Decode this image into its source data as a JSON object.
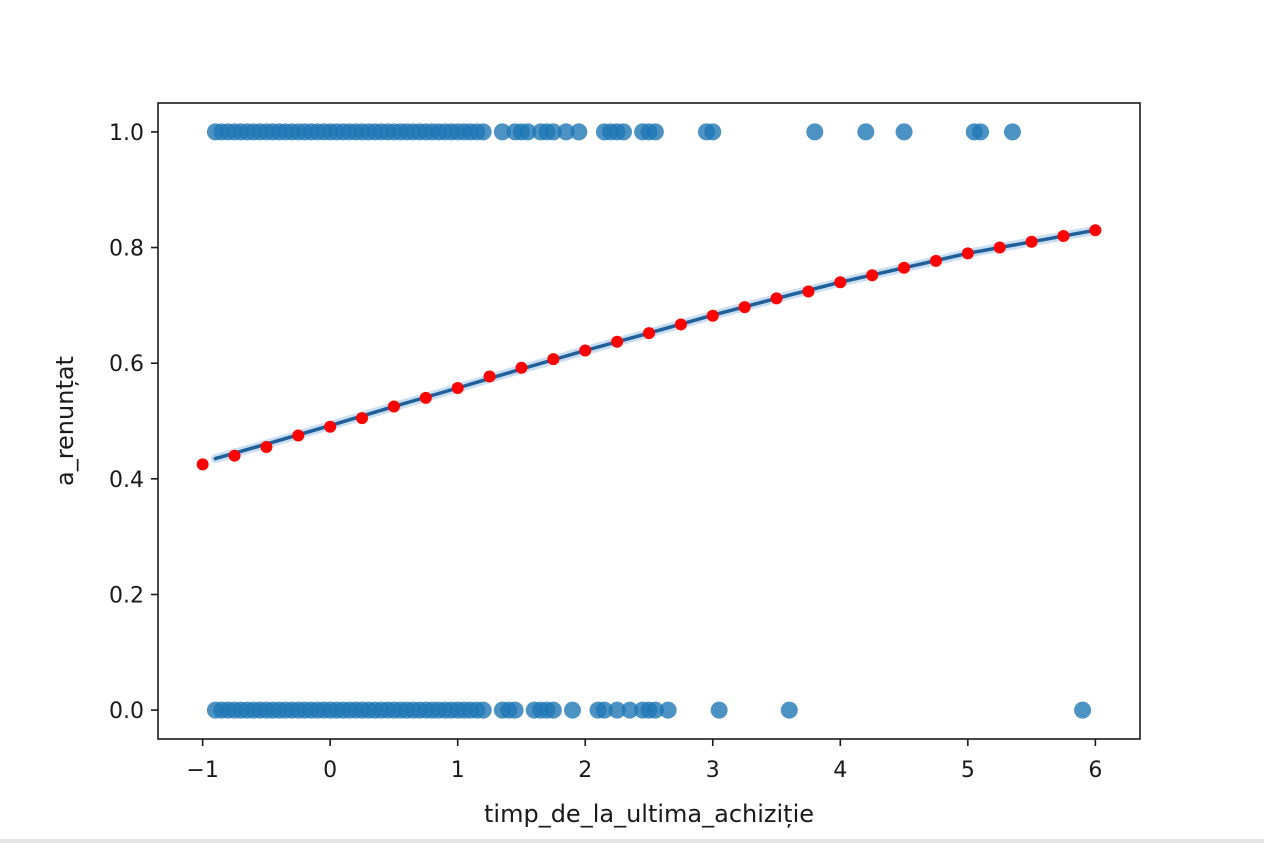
{
  "chart_data": {
    "type": "scatter",
    "title": "",
    "xlabel": "timp_de_la_ultima_achiziție",
    "ylabel": "a_renunțat",
    "xlim": [
      -1.35,
      6.35
    ],
    "ylim": [
      -0.05,
      1.05
    ],
    "xticks": [
      -1,
      0,
      1,
      2,
      3,
      4,
      5,
      6
    ],
    "xtick_labels": [
      "−1",
      "0",
      "1",
      "2",
      "3",
      "4",
      "5",
      "6"
    ],
    "yticks": [
      0.0,
      0.2,
      0.4,
      0.6,
      0.8,
      1.0
    ],
    "ytick_labels": [
      "0.0",
      "0.2",
      "0.4",
      "0.6",
      "0.8",
      "1.0"
    ],
    "grid": false,
    "colors": {
      "observed": "#1f77b4",
      "fit_line": "#1f5f9a",
      "predicted": "#ff0000"
    },
    "series": [
      {
        "kind": "scatter",
        "values_x": [
          -0.9,
          -0.85,
          -0.8,
          -0.75,
          -0.7,
          -0.65,
          -0.6,
          -0.55,
          -0.5,
          -0.45,
          -0.4,
          -0.35,
          -0.3,
          -0.25,
          -0.2,
          -0.15,
          -0.1,
          -0.05,
          0,
          0.05,
          0.1,
          0.15,
          0.2,
          0.25,
          0.3,
          0.35,
          0.4,
          0.45,
          0.5,
          0.55,
          0.6,
          0.65,
          0.7,
          0.75,
          0.8,
          0.85,
          0.9,
          0.95,
          1.0,
          1.05,
          1.1,
          1.15,
          1.2,
          1.35,
          1.45,
          1.5,
          1.55,
          1.65,
          1.7,
          1.75,
          1.85,
          1.95,
          2.15,
          2.2,
          2.25,
          2.3,
          2.45,
          2.5,
          2.55,
          2.95,
          3.0,
          3.8,
          4.2,
          4.5,
          5.05,
          5.1,
          5.35
        ],
        "value_y": 1.0
      },
      {
        "kind": "scatter",
        "values_x": [
          -0.9,
          -0.85,
          -0.8,
          -0.75,
          -0.7,
          -0.65,
          -0.6,
          -0.55,
          -0.5,
          -0.45,
          -0.4,
          -0.35,
          -0.3,
          -0.25,
          -0.2,
          -0.15,
          -0.1,
          -0.05,
          0,
          0.05,
          0.1,
          0.15,
          0.2,
          0.25,
          0.3,
          0.35,
          0.4,
          0.45,
          0.5,
          0.55,
          0.6,
          0.65,
          0.7,
          0.75,
          0.8,
          0.85,
          0.9,
          0.95,
          1.0,
          1.05,
          1.1,
          1.15,
          1.2,
          1.35,
          1.4,
          1.45,
          1.6,
          1.65,
          1.7,
          1.75,
          1.9,
          2.1,
          2.15,
          2.25,
          2.35,
          2.45,
          2.5,
          2.55,
          2.65,
          3.05,
          3.6,
          5.9
        ],
        "value_y": 0.0
      },
      {
        "kind": "line",
        "x": [
          -0.9,
          -0.5,
          0,
          0.5,
          1,
          1.5,
          2,
          2.5,
          3,
          3.5,
          4,
          4.5,
          5,
          5.5,
          6.0
        ],
        "y": [
          0.435,
          0.46,
          0.492,
          0.525,
          0.557,
          0.59,
          0.622,
          0.652,
          0.683,
          0.712,
          0.74,
          0.765,
          0.79,
          0.81,
          0.83
        ]
      },
      {
        "kind": "scatter",
        "x": [
          -1.0,
          -0.75,
          -0.5,
          -0.25,
          0,
          0.25,
          0.5,
          0.75,
          1.0,
          1.25,
          1.5,
          1.75,
          2.0,
          2.25,
          2.5,
          2.75,
          3.0,
          3.25,
          3.5,
          3.75,
          4.0,
          4.25,
          4.5,
          4.75,
          5.0,
          5.25,
          5.5,
          5.75,
          6.0
        ],
        "y": [
          0.425,
          0.44,
          0.455,
          0.475,
          0.49,
          0.505,
          0.525,
          0.54,
          0.557,
          0.577,
          0.592,
          0.607,
          0.622,
          0.637,
          0.652,
          0.667,
          0.682,
          0.697,
          0.712,
          0.724,
          0.74,
          0.752,
          0.765,
          0.777,
          0.79,
          0.8,
          0.81,
          0.82,
          0.83
        ]
      }
    ]
  }
}
